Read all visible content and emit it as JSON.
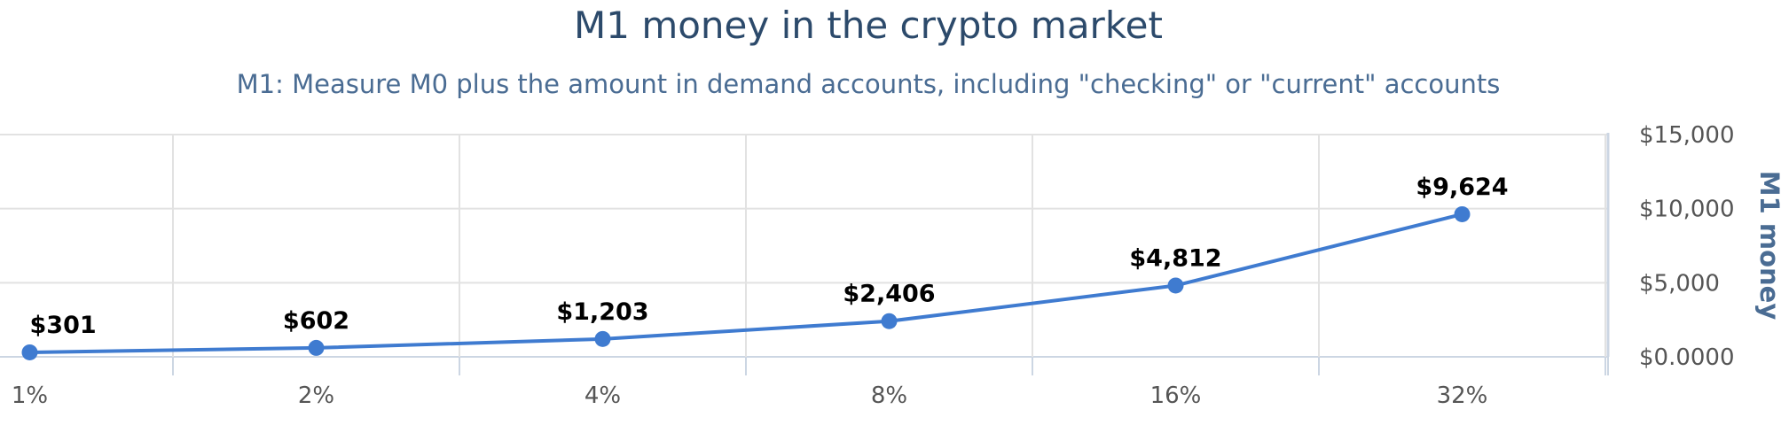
{
  "chart_data": {
    "type": "line",
    "title": "M1 money in the crypto market",
    "subtitle": "M1: Measure M0 plus the amount in demand accounts, including \"checking\" or \"current\" accounts",
    "categories": [
      "1%",
      "2%",
      "4%",
      "8%",
      "16%",
      "32%"
    ],
    "series": [
      {
        "values": [
          301,
          602,
          1203,
          2406,
          4812,
          9624
        ],
        "labels": [
          "$301",
          "$602",
          "$1,203",
          "$2,406",
          "$4,812",
          "$9,624"
        ]
      }
    ],
    "y_axis": {
      "title": "M1 money",
      "position": "right",
      "ylim": [
        0,
        15000
      ],
      "ticks": [
        0,
        5000,
        10000,
        15000
      ],
      "tick_labels": [
        "$0.0000",
        "$5,000",
        "$10,000",
        "$15,000"
      ]
    },
    "grid": true,
    "colors": {
      "line": "#3f7bd0",
      "axis_title": "#4a6c93",
      "grid": "#e2e2e2",
      "axis_line": "#ccd6e3"
    }
  }
}
